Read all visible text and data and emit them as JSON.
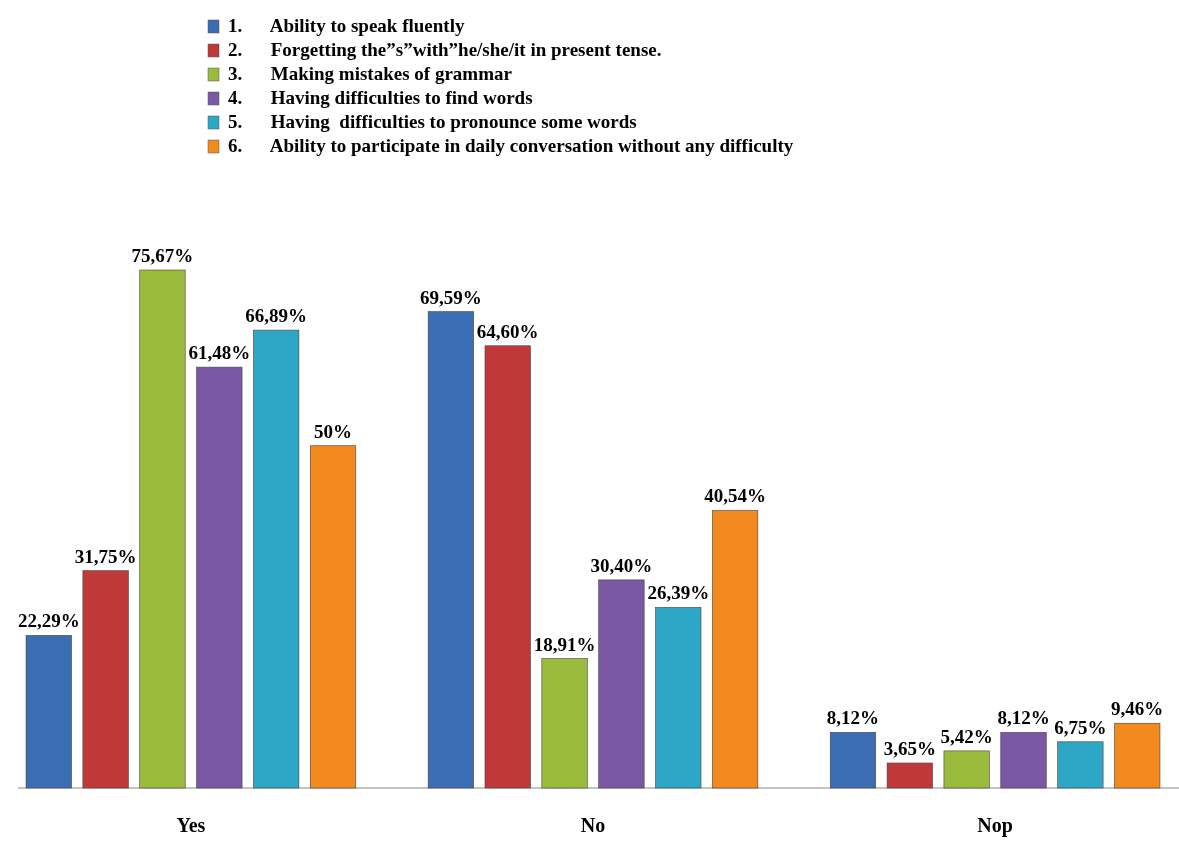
{
  "chart_data": {
    "type": "bar",
    "categories": [
      "Yes",
      "No",
      "Nop"
    ],
    "legend": "top",
    "series": [
      {
        "name": "1.      Ability to speak fluently",
        "color": "#3a6db3",
        "values": [
          22.29,
          69.59,
          8.12
        ],
        "value_labels": [
          "22,29%",
          "69,59%",
          "8,12%"
        ]
      },
      {
        "name": "2.      Forgetting the”s”with”he/she/it in present tense.",
        "color": "#c0393a",
        "values": [
          31.75,
          64.6,
          3.65
        ],
        "value_labels": [
          "31,75%",
          "64,60%",
          "3,65%"
        ]
      },
      {
        "name": "3.      Making mistakes of grammar",
        "color": "#9bbb3c",
        "values": [
          75.67,
          18.91,
          5.42
        ],
        "value_labels": [
          "75,67%",
          "18,91%",
          "5,42%"
        ]
      },
      {
        "name": "4.      Having difficulties to find words",
        "color": "#7a58a4",
        "values": [
          61.48,
          30.4,
          8.12
        ],
        "value_labels": [
          "61,48%",
          "30,40%",
          "8,12%"
        ]
      },
      {
        "name": "5.      Having  difficulties to pronounce some words",
        "color": "#2ea6c6",
        "values": [
          66.89,
          26.39,
          6.75
        ],
        "value_labels": [
          "66,89%",
          "26,39%",
          "6,75%"
        ]
      },
      {
        "name": "6.      Ability to participate in daily conversation without any difficulty",
        "color": "#f28a1e",
        "values": [
          50,
          40.54,
          9.46
        ],
        "value_labels": [
          "50%",
          "40,54%",
          "9,46%"
        ]
      }
    ]
  }
}
